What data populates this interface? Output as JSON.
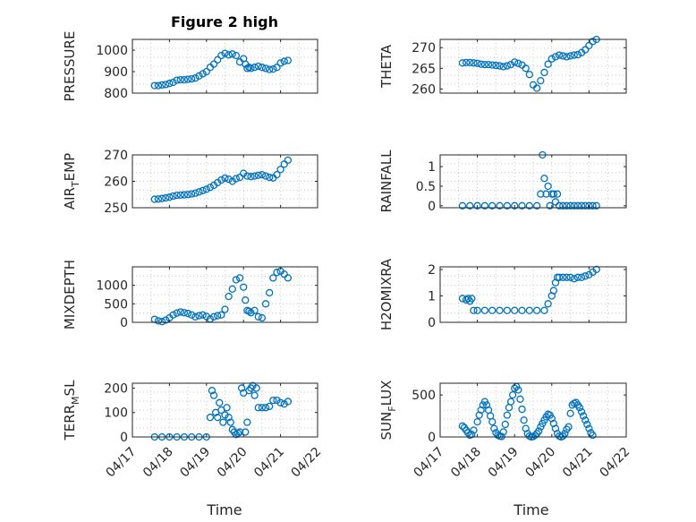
{
  "figure": {
    "title": "Figure 2 high",
    "marker_color": "#0072BD",
    "x_tick_labels": [
      "04/17",
      "04/18",
      "04/19",
      "04/20",
      "04/21",
      "04/22"
    ],
    "x_label": "Time"
  },
  "chart_data": [
    {
      "type": "scatter",
      "ylabel": "PRESSURE",
      "ylabel_sub": "",
      "ylabel_suffix": "",
      "xlim": [
        0,
        5
      ],
      "ylim": [
        800,
        1050
      ],
      "yticks": [
        800,
        900,
        1000
      ],
      "yticklabels": [
        "800",
        "900",
        "1000"
      ],
      "grid": true,
      "title": "Figure 2 high",
      "x": [
        0.6,
        0.7,
        0.8,
        0.9,
        1.0,
        1.1,
        1.2,
        1.3,
        1.4,
        1.5,
        1.6,
        1.7,
        1.8,
        1.9,
        2.0,
        2.1,
        2.2,
        2.3,
        2.4,
        2.5,
        2.6,
        2.7,
        2.8,
        2.9,
        3.0,
        3.05,
        3.1,
        3.15,
        3.2,
        3.3,
        3.4,
        3.5,
        3.6,
        3.7,
        3.8,
        3.9,
        4.0,
        4.1,
        4.2
      ],
      "y": [
        835,
        835,
        838,
        840,
        845,
        850,
        860,
        862,
        862,
        864,
        866,
        870,
        880,
        890,
        900,
        920,
        935,
        955,
        975,
        985,
        978,
        982,
        975,
        945,
        960,
        935,
        915,
        920,
        915,
        920,
        925,
        920,
        915,
        910,
        912,
        920,
        940,
        948,
        952
      ]
    },
    {
      "type": "scatter",
      "ylabel": "THETA",
      "ylabel_sub": "",
      "ylabel_suffix": "",
      "xlim": [
        0,
        5
      ],
      "ylim": [
        259,
        272
      ],
      "yticks": [
        260,
        265,
        270
      ],
      "yticklabels": [
        "260",
        "265",
        "270"
      ],
      "grid": true,
      "x": [
        0.6,
        0.7,
        0.8,
        0.9,
        1.0,
        1.1,
        1.2,
        1.3,
        1.4,
        1.5,
        1.6,
        1.7,
        1.8,
        1.9,
        2.0,
        2.1,
        2.2,
        2.3,
        2.4,
        2.5,
        2.6,
        2.7,
        2.8,
        2.9,
        3.0,
        3.1,
        3.2,
        3.3,
        3.4,
        3.5,
        3.6,
        3.7,
        3.8,
        3.9,
        4.0,
        4.1,
        4.2
      ],
      "y": [
        266.3,
        266.4,
        266.4,
        266.3,
        266.2,
        266.0,
        265.9,
        265.9,
        265.8,
        265.7,
        265.6,
        265.4,
        265.6,
        265.9,
        266.5,
        266.2,
        265.8,
        265.0,
        263.5,
        261.0,
        260.2,
        262.0,
        264.0,
        266.0,
        267.3,
        267.8,
        268.2,
        268.0,
        267.8,
        268.0,
        268.2,
        268.3,
        268.8,
        269.5,
        270.5,
        271.5,
        272.0
      ]
    },
    {
      "type": "scatter",
      "ylabel": "AIR",
      "ylabel_sub": "T",
      "ylabel_suffix": "EMP",
      "xlim": [
        0,
        5
      ],
      "ylim": [
        250,
        270
      ],
      "yticks": [
        250,
        260,
        270
      ],
      "yticklabels": [
        "250",
        "260",
        "270"
      ],
      "grid": true,
      "x": [
        0.6,
        0.7,
        0.8,
        0.9,
        1.0,
        1.1,
        1.2,
        1.3,
        1.4,
        1.5,
        1.6,
        1.7,
        1.8,
        1.9,
        2.0,
        2.1,
        2.2,
        2.3,
        2.4,
        2.5,
        2.6,
        2.7,
        2.8,
        2.9,
        3.0,
        3.1,
        3.2,
        3.3,
        3.4,
        3.5,
        3.6,
        3.7,
        3.8,
        3.9,
        4.0,
        4.1,
        4.2
      ],
      "y": [
        253.2,
        253.3,
        253.5,
        253.7,
        254.0,
        254.4,
        254.7,
        254.8,
        254.9,
        255.0,
        255.2,
        255.5,
        256.0,
        256.5,
        257.0,
        257.7,
        258.5,
        259.5,
        260.5,
        261.2,
        260.8,
        260.0,
        261.0,
        261.5,
        263.0,
        262.0,
        261.8,
        262.0,
        262.3,
        262.5,
        262.0,
        261.5,
        261.3,
        262.5,
        264.5,
        266.5,
        268.0
      ]
    },
    {
      "type": "scatter",
      "ylabel": "RAINFALL",
      "ylabel_sub": "",
      "ylabel_suffix": "",
      "xlim": [
        0,
        5
      ],
      "ylim": [
        -0.05,
        1.3
      ],
      "yticks": [
        0,
        0.5,
        1
      ],
      "yticklabels": [
        "0",
        "0.5",
        "1"
      ],
      "grid": true,
      "x": [
        0.6,
        0.8,
        1.0,
        1.2,
        1.4,
        1.6,
        1.8,
        2.0,
        2.2,
        2.4,
        2.6,
        2.7,
        2.75,
        2.8,
        2.85,
        2.9,
        2.95,
        3.0,
        3.05,
        3.1,
        3.15,
        3.2,
        3.3,
        3.4,
        3.5,
        3.6,
        3.7,
        3.8,
        3.9,
        4.0,
        4.1,
        4.2
      ],
      "y": [
        0,
        0,
        0,
        0,
        0,
        0,
        0,
        0,
        0,
        0,
        0,
        0.3,
        1.3,
        0.7,
        0.3,
        0.5,
        0,
        0.3,
        0.3,
        0.1,
        0.3,
        0,
        0,
        0,
        0,
        0,
        0,
        0,
        0,
        0,
        0,
        0
      ]
    },
    {
      "type": "scatter",
      "ylabel": "MIXDEPTH",
      "ylabel_sub": "",
      "ylabel_suffix": "",
      "xlim": [
        0,
        5
      ],
      "ylim": [
        0,
        1500
      ],
      "yticks": [
        0,
        500,
        1000
      ],
      "yticklabels": [
        "0",
        "500",
        "1000"
      ],
      "grid": true,
      "x": [
        0.6,
        0.7,
        0.8,
        0.9,
        1.0,
        1.1,
        1.2,
        1.3,
        1.4,
        1.5,
        1.6,
        1.7,
        1.8,
        1.9,
        2.0,
        2.1,
        2.2,
        2.3,
        2.4,
        2.5,
        2.6,
        2.7,
        2.8,
        2.9,
        3.0,
        3.05,
        3.1,
        3.15,
        3.2,
        3.3,
        3.4,
        3.5,
        3.6,
        3.7,
        3.8,
        3.9,
        4.0,
        4.1,
        4.2
      ],
      "y": [
        80,
        40,
        20,
        60,
        120,
        200,
        250,
        280,
        260,
        240,
        200,
        150,
        180,
        200,
        160,
        90,
        150,
        180,
        200,
        350,
        700,
        900,
        1150,
        1200,
        950,
        600,
        320,
        300,
        260,
        320,
        150,
        120,
        500,
        800,
        1200,
        1350,
        1380,
        1300,
        1200
      ]
    },
    {
      "type": "scatter",
      "ylabel": "H2OMIXRA",
      "ylabel_sub": "",
      "ylabel_suffix": "",
      "xlim": [
        0,
        5
      ],
      "ylim": [
        0,
        2.1
      ],
      "yticks": [
        0,
        1,
        2
      ],
      "yticklabels": [
        "0",
        "1",
        "2"
      ],
      "grid": true,
      "x": [
        0.6,
        0.7,
        0.75,
        0.8,
        0.85,
        0.9,
        1.0,
        1.2,
        1.4,
        1.6,
        1.8,
        2.0,
        2.2,
        2.4,
        2.6,
        2.8,
        2.9,
        3.0,
        3.05,
        3.1,
        3.15,
        3.2,
        3.3,
        3.4,
        3.5,
        3.6,
        3.7,
        3.8,
        3.9,
        4.0,
        4.1,
        4.2
      ],
      "y": [
        0.9,
        0.85,
        0.9,
        0.8,
        0.9,
        0.45,
        0.45,
        0.45,
        0.45,
        0.45,
        0.45,
        0.45,
        0.45,
        0.45,
        0.45,
        0.45,
        0.7,
        1.0,
        1.2,
        1.5,
        1.7,
        1.7,
        1.7,
        1.7,
        1.7,
        1.65,
        1.7,
        1.7,
        1.75,
        1.8,
        1.9,
        2.0
      ]
    },
    {
      "type": "scatter",
      "ylabel": "TERR",
      "ylabel_sub": "M",
      "ylabel_suffix": "SL",
      "xlim": [
        0,
        5
      ],
      "ylim": [
        0,
        220
      ],
      "yticks": [
        0,
        100,
        200
      ],
      "yticklabels": [
        "0",
        "100",
        "200"
      ],
      "grid": true,
      "x": [
        0.6,
        0.8,
        1.0,
        1.2,
        1.4,
        1.6,
        1.8,
        2.0,
        2.1,
        2.15,
        2.2,
        2.25,
        2.3,
        2.35,
        2.4,
        2.45,
        2.5,
        2.55,
        2.6,
        2.65,
        2.7,
        2.75,
        2.8,
        2.85,
        2.9,
        2.95,
        3.0,
        3.05,
        3.1,
        3.15,
        3.2,
        3.25,
        3.3,
        3.35,
        3.4,
        3.5,
        3.6,
        3.7,
        3.8,
        3.9,
        4.0,
        4.1,
        4.2
      ],
      "y": [
        0,
        0,
        0,
        0,
        0,
        0,
        0,
        0,
        80,
        190,
        170,
        100,
        80,
        140,
        110,
        60,
        90,
        120,
        80,
        60,
        30,
        20,
        10,
        15,
        20,
        200,
        180,
        20,
        60,
        190,
        200,
        210,
        170,
        200,
        120,
        120,
        120,
        125,
        150,
        150,
        140,
        135,
        145
      ]
    },
    {
      "type": "scatter",
      "ylabel": "SUN",
      "ylabel_sub": "F",
      "ylabel_suffix": "LUX",
      "xlim": [
        0,
        5
      ],
      "ylim": [
        0,
        640
      ],
      "yticks": [
        0,
        500
      ],
      "yticklabels": [
        "0",
        "500"
      ],
      "grid": true,
      "x": [
        0.6,
        0.65,
        0.7,
        0.75,
        0.8,
        0.85,
        0.9,
        1.0,
        1.05,
        1.1,
        1.15,
        1.2,
        1.25,
        1.3,
        1.35,
        1.4,
        1.45,
        1.5,
        1.55,
        1.6,
        1.65,
        1.7,
        1.75,
        1.8,
        1.85,
        1.9,
        1.95,
        2.0,
        2.05,
        2.1,
        2.15,
        2.2,
        2.25,
        2.3,
        2.35,
        2.4,
        2.45,
        2.5,
        2.55,
        2.6,
        2.65,
        2.7,
        2.75,
        2.8,
        2.85,
        2.9,
        2.95,
        3.0,
        3.05,
        3.1,
        3.15,
        3.2,
        3.25,
        3.3,
        3.35,
        3.4,
        3.45,
        3.5,
        3.55,
        3.6,
        3.65,
        3.7,
        3.75,
        3.8,
        3.85,
        3.9,
        3.95,
        4.0,
        4.05,
        4.1
      ],
      "y": [
        130,
        110,
        80,
        50,
        20,
        30,
        80,
        180,
        260,
        320,
        380,
        420,
        380,
        320,
        250,
        180,
        100,
        50,
        20,
        10,
        5,
        60,
        150,
        260,
        350,
        420,
        500,
        580,
        600,
        560,
        450,
        330,
        200,
        100,
        40,
        10,
        0,
        5,
        20,
        40,
        70,
        120,
        160,
        200,
        240,
        270,
        260,
        220,
        160,
        100,
        40,
        10,
        0,
        10,
        40,
        90,
        120,
        280,
        380,
        400,
        410,
        380,
        350,
        300,
        250,
        200,
        150,
        100,
        50,
        20
      ]
    }
  ]
}
